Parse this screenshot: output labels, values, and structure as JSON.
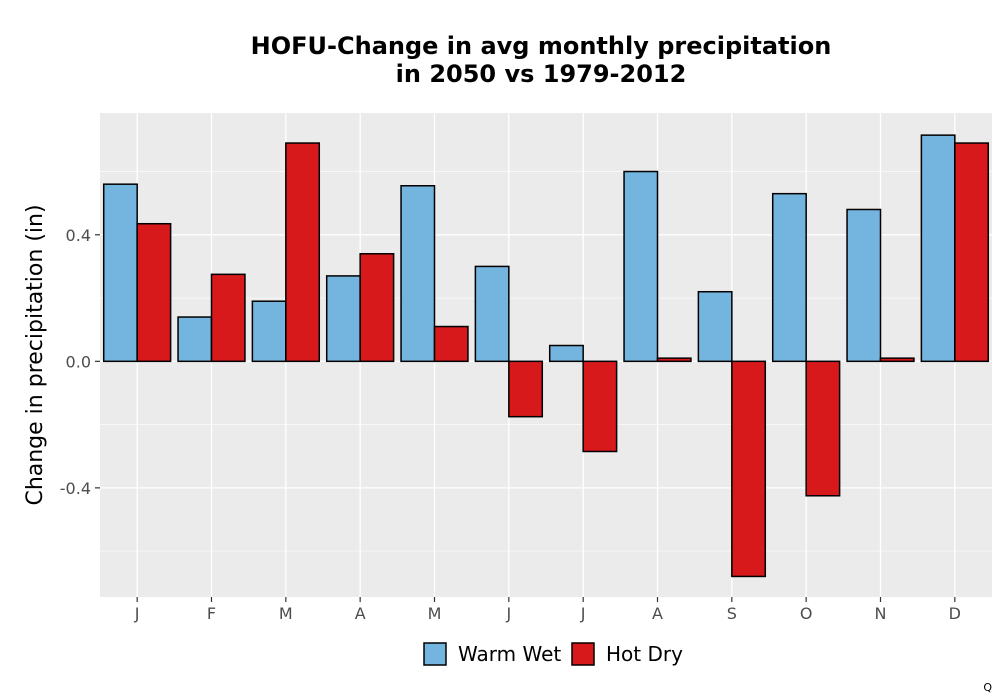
{
  "chart_data": {
    "type": "bar",
    "title_lines": [
      "HOFU-Change in avg monthly precipitation",
      "in 2050 vs 1979-2012"
    ],
    "xlabel": "",
    "ylabel": "Change in precipitation (in)",
    "categories": [
      "J",
      "F",
      "M",
      "A",
      "M",
      "J",
      "J",
      "A",
      "S",
      "O",
      "N",
      "D"
    ],
    "series": [
      {
        "name": "Warm Wet",
        "color": "#74b5e0",
        "values": [
          0.56,
          0.14,
          0.19,
          0.27,
          0.555,
          0.3,
          0.05,
          0.6,
          0.22,
          0.53,
          0.48,
          0.715
        ]
      },
      {
        "name": "Hot Dry",
        "color": "#d7191c",
        "values": [
          0.435,
          0.275,
          0.69,
          0.34,
          0.11,
          -0.175,
          -0.285,
          0.01,
          -0.68,
          -0.425,
          0.01,
          0.69
        ]
      }
    ],
    "yticks": [
      -0.4,
      0.0,
      0.4
    ],
    "ytick_labels": [
      "-0.4",
      "0.0",
      "0.4"
    ],
    "ylim": [
      -0.745,
      0.785
    ],
    "grid": true,
    "panel_background": "#ebebeb",
    "legend_position": "bottom"
  },
  "corner_text": "Q"
}
